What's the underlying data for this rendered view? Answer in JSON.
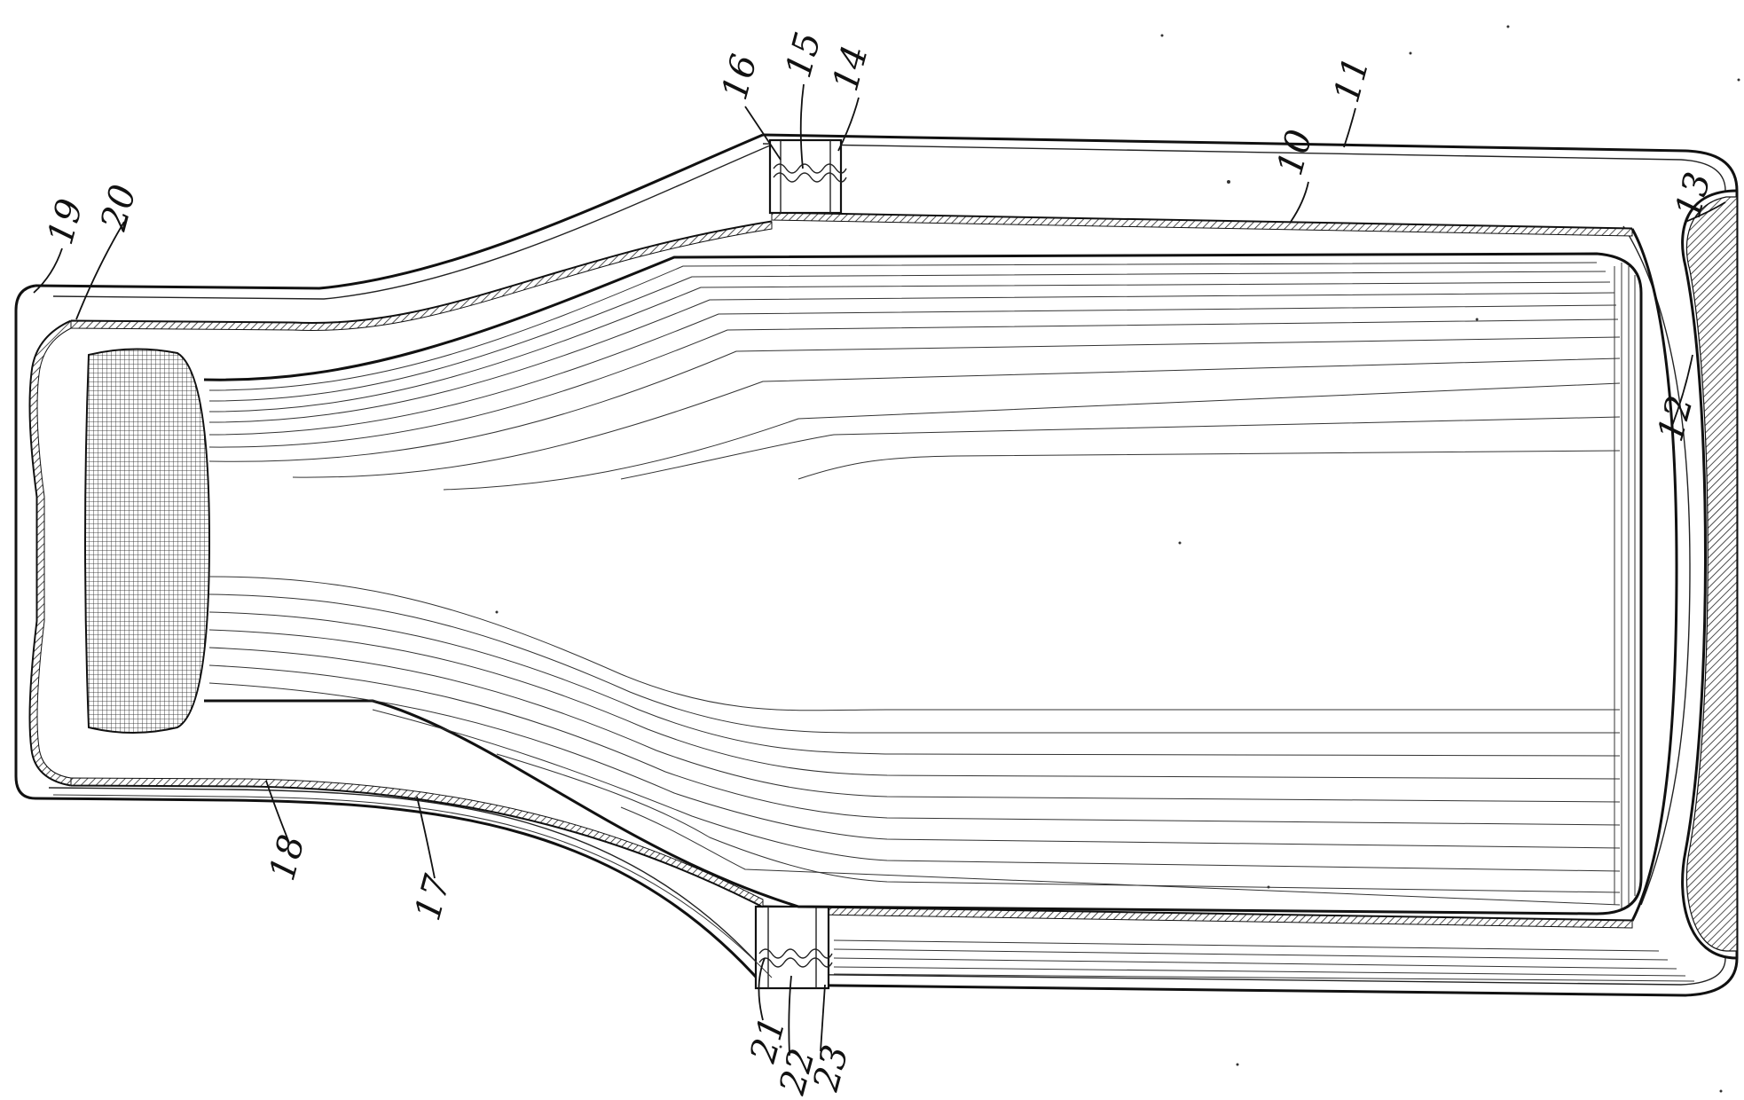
{
  "figure": {
    "reference_numerals": [
      {
        "id": "ref-10",
        "text": "10"
      },
      {
        "id": "ref-11",
        "text": "11"
      },
      {
        "id": "ref-12",
        "text": "12"
      },
      {
        "id": "ref-13",
        "text": "13"
      },
      {
        "id": "ref-14",
        "text": "14"
      },
      {
        "id": "ref-15",
        "text": "15"
      },
      {
        "id": "ref-16",
        "text": "16"
      },
      {
        "id": "ref-17",
        "text": "17"
      },
      {
        "id": "ref-18",
        "text": "18"
      },
      {
        "id": "ref-19",
        "text": "19"
      },
      {
        "id": "ref-20",
        "text": "20"
      },
      {
        "id": "ref-21",
        "text": "21"
      },
      {
        "id": "ref-22",
        "text": "22"
      },
      {
        "id": "ref-23",
        "text": "23"
      }
    ]
  }
}
